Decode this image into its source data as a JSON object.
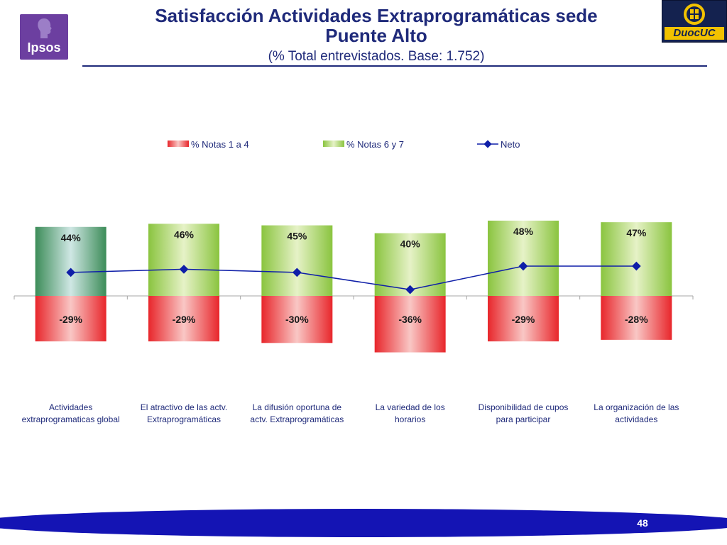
{
  "header": {
    "title_line1": "Satisfacción Actividades Extraprogramáticas sede",
    "title_line2": "Puente Alto",
    "subtitle": "(% Total entrevistados. Base: 1.752)"
  },
  "logos": {
    "ipsos": "Ipsos",
    "duoc": "DuocUC"
  },
  "footer": {
    "page_number": "48"
  },
  "colors": {
    "title": "#1f2a7a",
    "negative_bar": "#e8262b",
    "positive_bar": "#8ac43f",
    "highlight_bar": "#3c8c58",
    "neto_line": "#0f1fa8"
  },
  "chart_data": {
    "type": "bar",
    "categories": [
      [
        "Actividades",
        "extraprogramaticas global"
      ],
      [
        "El atractivo de las actv.",
        "Extraprogramáticas"
      ],
      [
        "La difusión oportuna de",
        "actv. Extraprogramáticas"
      ],
      [
        "La variedad de los",
        "horarios"
      ],
      [
        "Disponibilidad de cupos",
        "para participar"
      ],
      [
        "La organización de las",
        "actividades"
      ]
    ],
    "series": [
      {
        "name": "% Notas 1 a 4",
        "values": [
          -29,
          -29,
          -30,
          -36,
          -29,
          -28
        ],
        "labels": [
          "-29%",
          "-29%",
          "-30%",
          "-36%",
          "-29%",
          "-28%"
        ]
      },
      {
        "name": "% Notas 6 y 7",
        "values": [
          44,
          46,
          45,
          40,
          48,
          47
        ],
        "labels": [
          "44%",
          "46%",
          "45%",
          "40%",
          "48%",
          "47%"
        ]
      },
      {
        "name": "Neto",
        "type": "line",
        "values": [
          15,
          17,
          15,
          4,
          19,
          19
        ]
      }
    ],
    "ylim": [
      -50,
      60
    ],
    "title": "",
    "xlabel": "",
    "ylabel": "",
    "legend_position": "top"
  }
}
